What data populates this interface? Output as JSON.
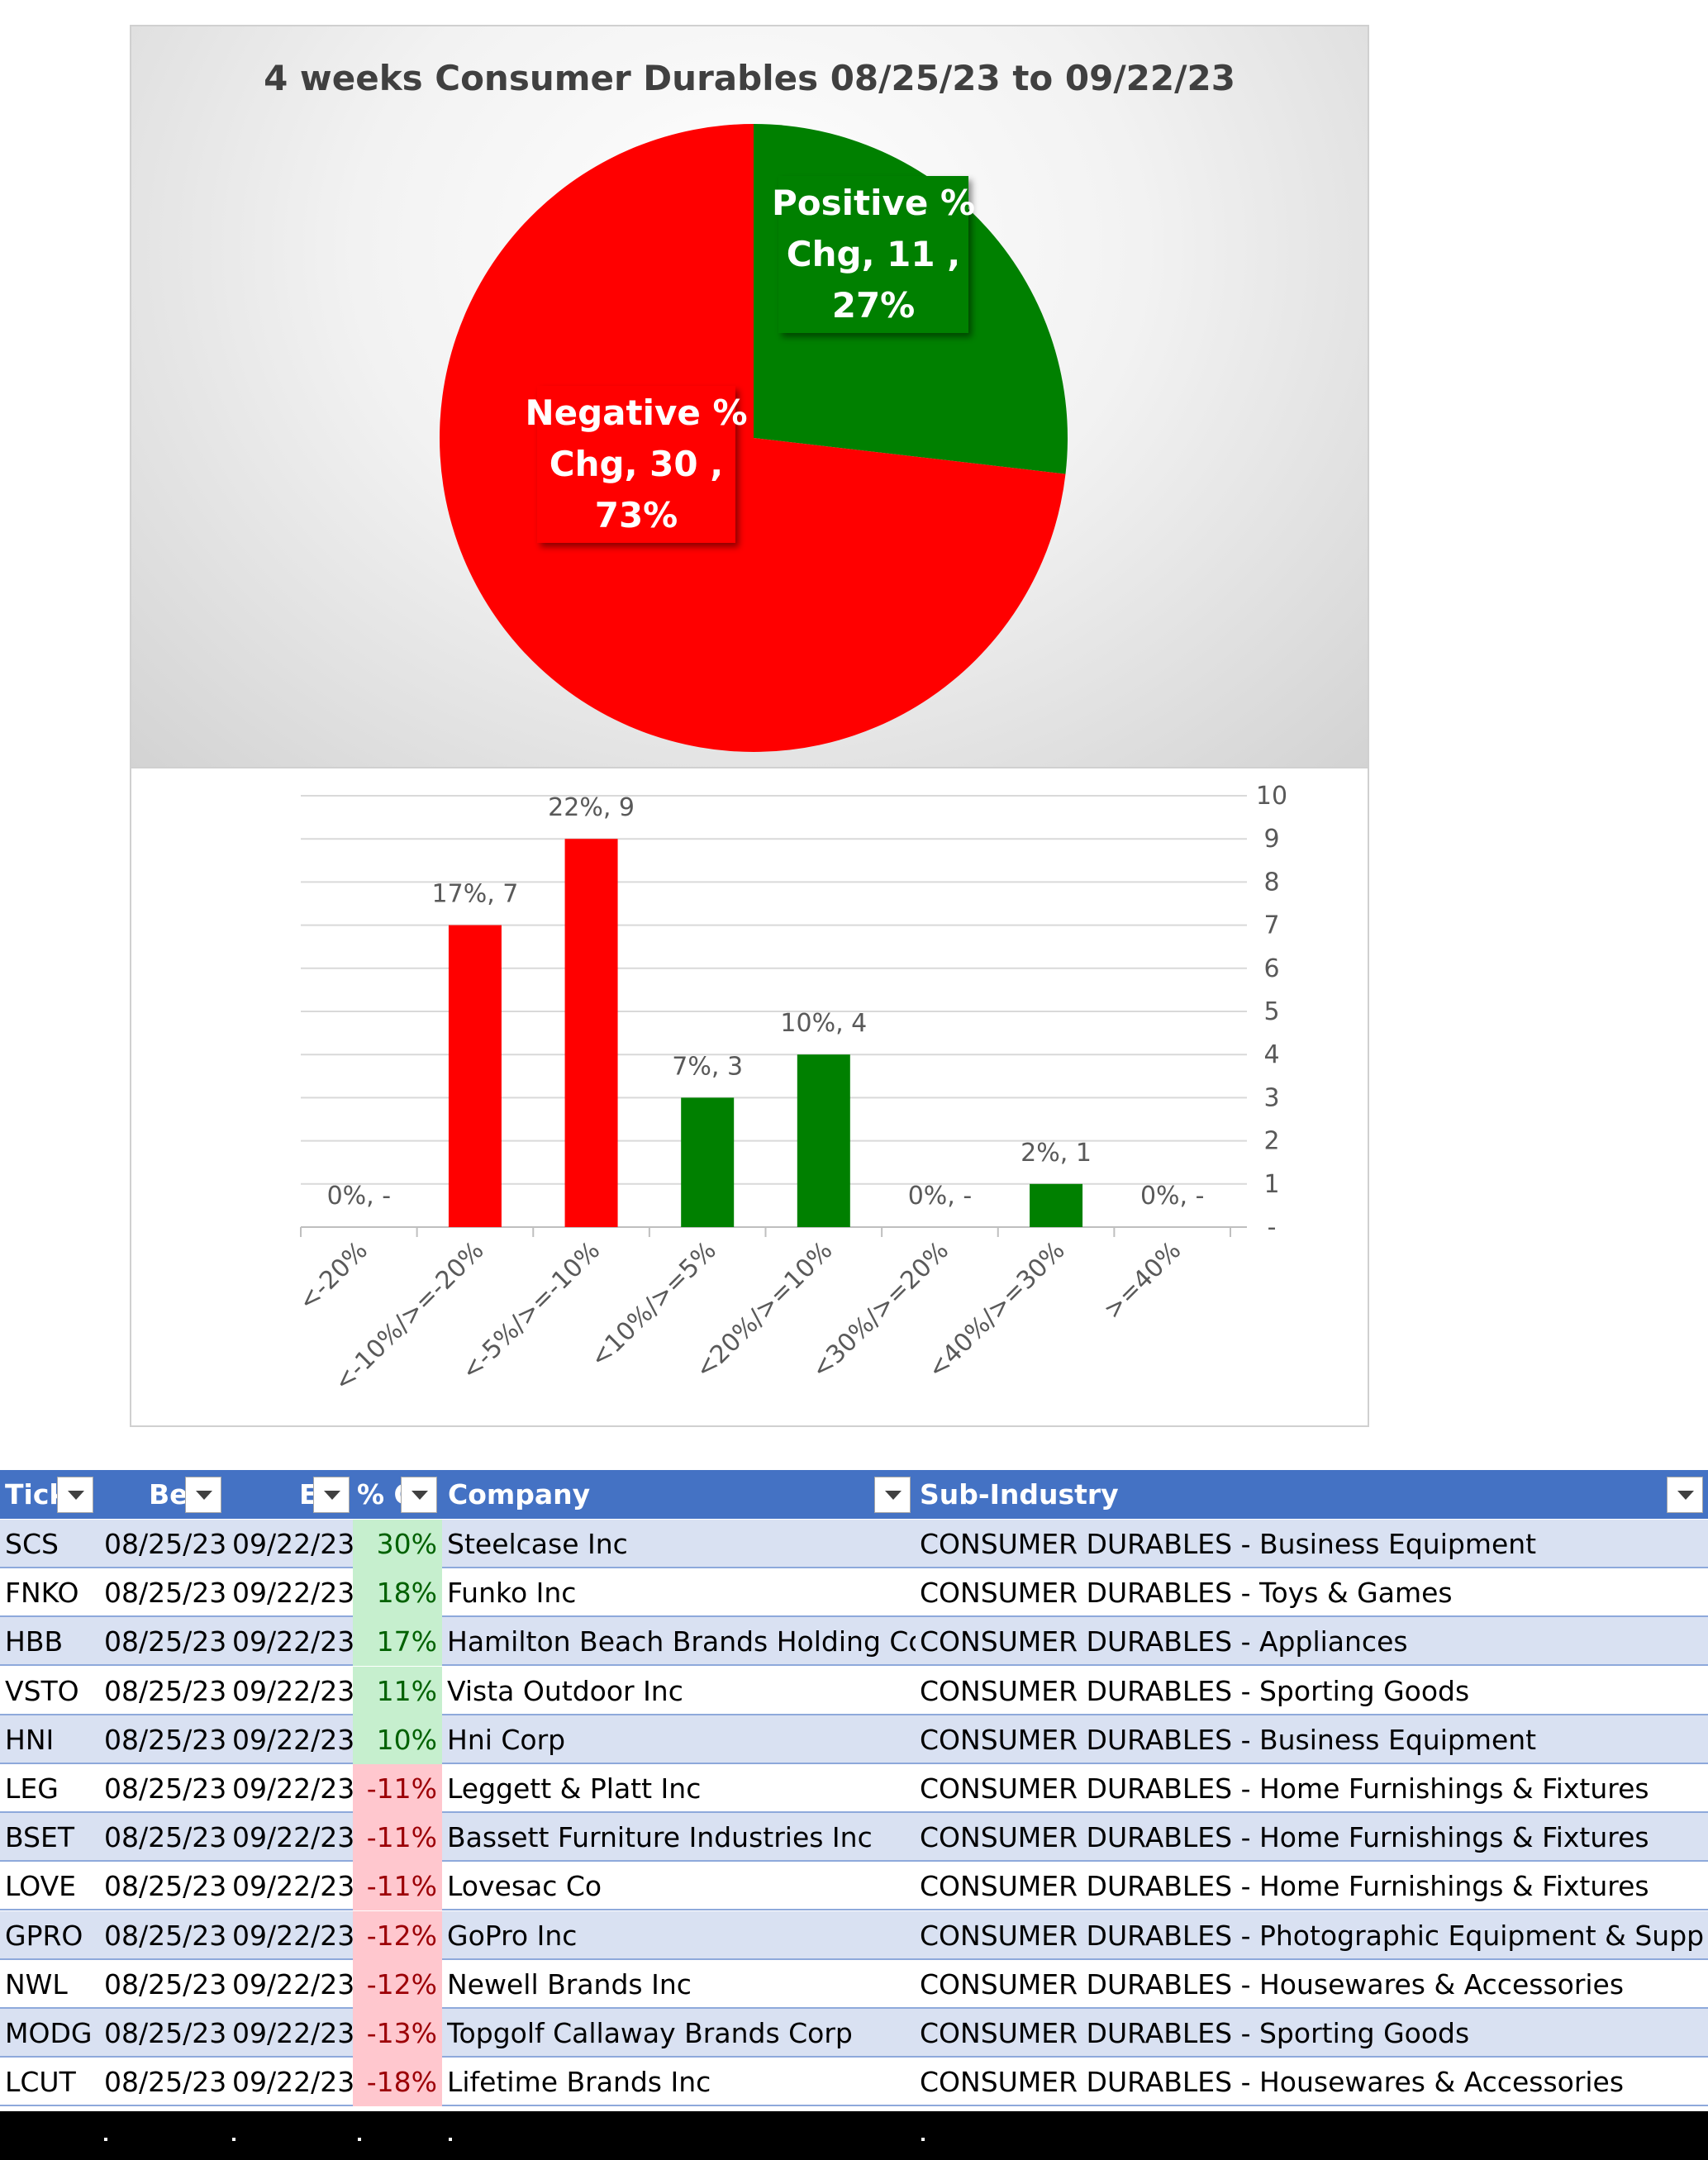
{
  "chart_data": [
    {
      "type": "pie",
      "title": "4 weeks Consumer Durables 08/25/23 to 09/22/23",
      "slices": [
        {
          "name": "Positive % Chg",
          "value": 11,
          "percent": "27%",
          "color": "#008000",
          "label_lines": [
            "Positive %",
            "Chg,  11 ,",
            "27%"
          ]
        },
        {
          "name": "Negative % Chg",
          "value": 30,
          "percent": "73%",
          "color": "#ff0000",
          "label_lines": [
            "Negative %",
            "Chg,  30 ,",
            "73%"
          ]
        }
      ]
    },
    {
      "type": "bar",
      "categories": [
        "<-20%",
        "<-10%/>=-20%",
        "<-5%/>=-10%",
        "<10%/>=5%",
        "<20%/>=10%",
        "<30%/>=20%",
        "<40%/>=30%",
        ">=40%"
      ],
      "values": [
        0,
        7,
        9,
        3,
        4,
        0,
        1,
        0
      ],
      "colors": [
        "#ff0000",
        "#ff0000",
        "#ff0000",
        "#008000",
        "#008000",
        "#008000",
        "#008000",
        "#008000"
      ],
      "data_labels": [
        "0%,  -",
        "17%,  7",
        "22%,  9",
        "7%,  3",
        "10%,  4",
        "0%,  -",
        "2%,  1",
        "0%,  -"
      ],
      "ylim": [
        0,
        10
      ],
      "yticks": [
        "-",
        "1",
        "2",
        "3",
        "4",
        "5",
        "6",
        "7",
        "8",
        "9",
        "10"
      ],
      "y_axis_position": "right",
      "grid": true
    }
  ],
  "table": {
    "headers": [
      "Tick",
      "Be",
      "E",
      "% C",
      "Company",
      "Sub-Industry"
    ],
    "rows": [
      {
        "ticker": "SCS",
        "begin": "08/25/23",
        "end": "09/22/23",
        "pct": "30%",
        "company": "Steelcase Inc",
        "sub": "CONSUMER DURABLES - Business Equipment"
      },
      {
        "ticker": "FNKO",
        "begin": "08/25/23",
        "end": "09/22/23",
        "pct": "18%",
        "company": "Funko Inc",
        "sub": "CONSUMER DURABLES - Toys & Games"
      },
      {
        "ticker": "HBB",
        "begin": "08/25/23",
        "end": "09/22/23",
        "pct": "17%",
        "company": "Hamilton Beach Brands Holding Com",
        "sub": "CONSUMER DURABLES - Appliances"
      },
      {
        "ticker": "VSTO",
        "begin": "08/25/23",
        "end": "09/22/23",
        "pct": "11%",
        "company": "Vista Outdoor Inc",
        "sub": "CONSUMER DURABLES - Sporting Goods"
      },
      {
        "ticker": "HNI",
        "begin": "08/25/23",
        "end": "09/22/23",
        "pct": "10%",
        "company": "Hni Corp",
        "sub": "CONSUMER DURABLES - Business Equipment"
      },
      {
        "ticker": "LEG",
        "begin": "08/25/23",
        "end": "09/22/23",
        "pct": "-11%",
        "company": "Leggett & Platt Inc",
        "sub": "CONSUMER DURABLES - Home Furnishings & Fixtures"
      },
      {
        "ticker": "BSET",
        "begin": "08/25/23",
        "end": "09/22/23",
        "pct": "-11%",
        "company": "Bassett Furniture Industries Inc",
        "sub": "CONSUMER DURABLES - Home Furnishings & Fixtures"
      },
      {
        "ticker": "LOVE",
        "begin": "08/25/23",
        "end": "09/22/23",
        "pct": "-11%",
        "company": "Lovesac Co",
        "sub": "CONSUMER DURABLES - Home Furnishings & Fixtures"
      },
      {
        "ticker": "GPRO",
        "begin": "08/25/23",
        "end": "09/22/23",
        "pct": "-12%",
        "company": "GoPro Inc",
        "sub": "CONSUMER DURABLES - Photographic Equipment & Supplies"
      },
      {
        "ticker": "NWL",
        "begin": "08/25/23",
        "end": "09/22/23",
        "pct": "-12%",
        "company": "Newell Brands Inc",
        "sub": "CONSUMER DURABLES - Housewares & Accessories"
      },
      {
        "ticker": "MODG",
        "begin": "08/25/23",
        "end": "09/22/23",
        "pct": "-13%",
        "company": "Topgolf Callaway Brands Corp",
        "sub": "CONSUMER DURABLES - Sporting Goods"
      },
      {
        "ticker": "LCUT",
        "begin": "08/25/23",
        "end": "09/22/23",
        "pct": "-18%",
        "company": "Lifetime Brands Inc",
        "sub": "CONSUMER DURABLES - Housewares & Accessories"
      }
    ]
  },
  "icons": {
    "filter_button": "dropdown-arrow-icon"
  }
}
